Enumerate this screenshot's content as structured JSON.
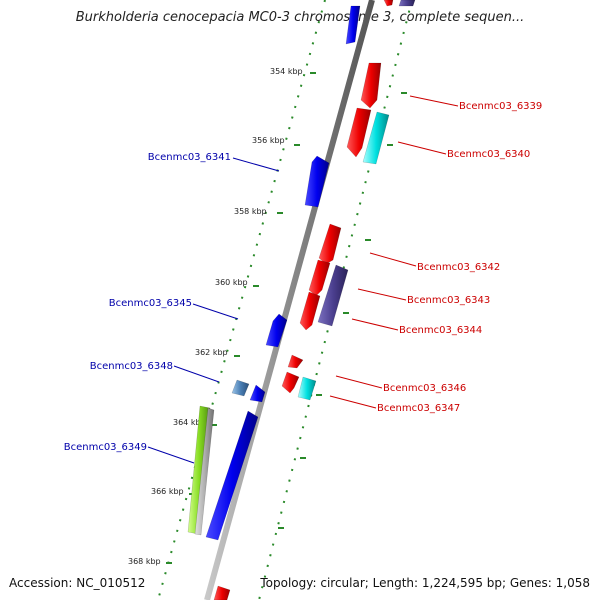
{
  "title": "Burkholderia cenocepacia MC0-3 chromosome 3, complete sequen...",
  "footer": {
    "accession": "Accession: NC_010512",
    "summary": "Topology: circular; Length: 1,224,595 bp; Genes: 1,058"
  },
  "tick_labels": [
    "354 kbp",
    "356 kbp",
    "358 kbp",
    "360 kbp",
    "362 kbp",
    "364 kbp",
    "366 kbp",
    "368 kbp"
  ],
  "gene_labels": {
    "forward": [
      "Bcenmc03_6339",
      "Bcenmc03_6340",
      "Bcenmc03_6342",
      "Bcenmc03_6343",
      "Bcenmc03_6344",
      "Bcenmc03_6346",
      "Bcenmc03_6347"
    ],
    "reverse": [
      "Bcenmc03_6341",
      "Bcenmc03_6345",
      "Bcenmc03_6348",
      "Bcenmc03_6349"
    ]
  },
  "colors": {
    "backbone": "#808080",
    "forward_cds": "#ee0000",
    "reverse_cds": "#0000ee",
    "cyan_feature": "#00e0e0",
    "purple_feature": "#4b3f8f",
    "green_feature": "#88dd22",
    "tick_green": "#2a8a2a"
  }
}
